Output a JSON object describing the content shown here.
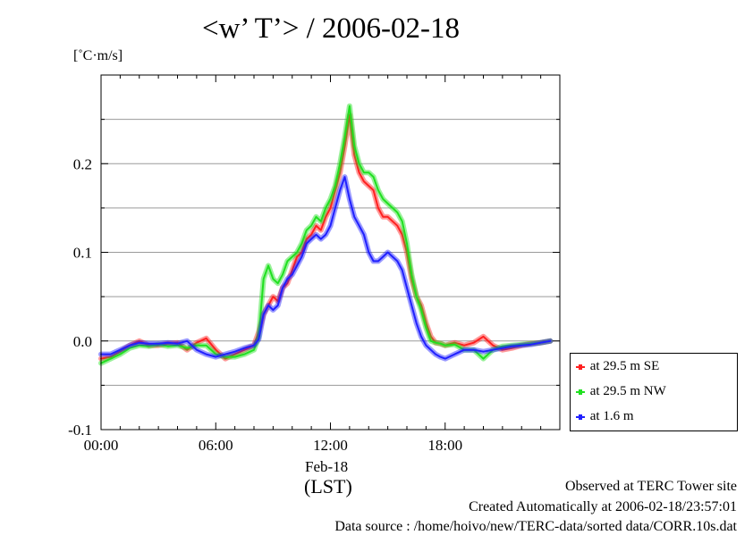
{
  "chart_data": {
    "type": "line",
    "title": "<w’ T’> / 2006-02-18",
    "ylabel": "[˚C·m/s]",
    "x_unit": "hours LST",
    "xlim": [
      0,
      24
    ],
    "ylim": [
      -0.1,
      0.3
    ],
    "x_ticks": [
      {
        "value": 0,
        "label": "00:00"
      },
      {
        "value": 6,
        "label": "06:00"
      },
      {
        "value": 12,
        "label": "12:00"
      },
      {
        "value": 18,
        "label": "18:00"
      }
    ],
    "y_ticks": [
      {
        "value": -0.1,
        "label": "-0.1"
      },
      {
        "value": 0.0,
        "label": "0.0"
      },
      {
        "value": 0.1,
        "label": "0.1"
      },
      {
        "value": 0.2,
        "label": "0.2"
      }
    ],
    "x_date_label": "Feb-18",
    "x_axis_label": "(LST)",
    "grid": "horizontal",
    "legend_position": "right",
    "series": [
      {
        "name": "at 29.5 m SE",
        "color": "#ff2020",
        "x": [
          0,
          0.5,
          1,
          1.5,
          2,
          2.5,
          3,
          3.5,
          4,
          4.5,
          5,
          5.5,
          6,
          6.5,
          7,
          7.5,
          8,
          8.25,
          8.5,
          8.75,
          9,
          9.25,
          9.5,
          9.75,
          10,
          10.25,
          10.5,
          10.75,
          11,
          11.25,
          11.5,
          11.75,
          12,
          12.25,
          12.5,
          12.75,
          13,
          13.25,
          13.5,
          13.75,
          14,
          14.25,
          14.5,
          14.75,
          15,
          15.25,
          15.5,
          15.75,
          16,
          16.25,
          16.5,
          16.75,
          17,
          17.25,
          17.5,
          17.75,
          18,
          18.5,
          19,
          19.5,
          20,
          20.5,
          21,
          21.5,
          22,
          22.5,
          23,
          23.5
        ],
        "y": [
          -0.02,
          -0.018,
          -0.012,
          -0.005,
          0.0,
          -0.005,
          -0.005,
          -0.003,
          -0.002,
          -0.01,
          -0.002,
          0.003,
          -0.01,
          -0.02,
          -0.015,
          -0.01,
          -0.005,
          0.01,
          0.03,
          0.04,
          0.05,
          0.045,
          0.06,
          0.065,
          0.08,
          0.095,
          0.1,
          0.115,
          0.12,
          0.13,
          0.125,
          0.14,
          0.15,
          0.17,
          0.19,
          0.22,
          0.255,
          0.21,
          0.19,
          0.18,
          0.175,
          0.17,
          0.15,
          0.14,
          0.14,
          0.135,
          0.13,
          0.12,
          0.1,
          0.07,
          0.05,
          0.04,
          0.02,
          0.005,
          -0.002,
          -0.003,
          -0.005,
          -0.002,
          -0.005,
          -0.002,
          0.005,
          -0.005,
          -0.01,
          -0.008,
          -0.005,
          -0.003,
          -0.002,
          0.0
        ]
      },
      {
        "name": "at 29.5 m NW",
        "color": "#20e020",
        "x": [
          0,
          0.5,
          1,
          1.5,
          2,
          2.5,
          3,
          3.5,
          4,
          4.5,
          5,
          5.5,
          6,
          6.5,
          7,
          7.5,
          8,
          8.25,
          8.5,
          8.75,
          9,
          9.25,
          9.5,
          9.75,
          10,
          10.25,
          10.5,
          10.75,
          11,
          11.25,
          11.5,
          11.75,
          12,
          12.25,
          12.5,
          12.75,
          13,
          13.25,
          13.5,
          13.75,
          14,
          14.25,
          14.5,
          14.75,
          15,
          15.25,
          15.5,
          15.75,
          16,
          16.25,
          16.5,
          16.75,
          17,
          17.25,
          17.5,
          17.75,
          18,
          18.5,
          19,
          19.5,
          20,
          20.5,
          21,
          21.5,
          22,
          22.5,
          23,
          23.5
        ],
        "y": [
          -0.025,
          -0.02,
          -0.015,
          -0.008,
          -0.005,
          -0.006,
          -0.004,
          -0.006,
          -0.005,
          -0.008,
          -0.005,
          -0.005,
          -0.015,
          -0.018,
          -0.018,
          -0.015,
          -0.01,
          0.005,
          0.07,
          0.085,
          0.07,
          0.065,
          0.075,
          0.09,
          0.095,
          0.1,
          0.11,
          0.125,
          0.13,
          0.14,
          0.135,
          0.15,
          0.16,
          0.175,
          0.2,
          0.23,
          0.265,
          0.22,
          0.2,
          0.19,
          0.19,
          0.185,
          0.17,
          0.16,
          0.155,
          0.15,
          0.145,
          0.135,
          0.11,
          0.075,
          0.05,
          0.035,
          0.015,
          0.0,
          -0.002,
          -0.003,
          -0.005,
          -0.004,
          -0.01,
          -0.01,
          -0.02,
          -0.01,
          -0.006,
          -0.005,
          -0.004,
          -0.003,
          -0.002,
          0.0
        ]
      },
      {
        "name": "at 1.6 m",
        "color": "#2020ff",
        "x": [
          0,
          0.5,
          1,
          1.5,
          2,
          2.5,
          3,
          3.5,
          4,
          4.5,
          5,
          5.5,
          6,
          6.5,
          7,
          7.5,
          8,
          8.25,
          8.5,
          8.75,
          9,
          9.25,
          9.5,
          9.75,
          10,
          10.25,
          10.5,
          10.75,
          11,
          11.25,
          11.5,
          11.75,
          12,
          12.25,
          12.5,
          12.75,
          13,
          13.25,
          13.5,
          13.75,
          14,
          14.25,
          14.5,
          14.75,
          15,
          15.25,
          15.5,
          15.75,
          16,
          16.25,
          16.5,
          16.75,
          17,
          17.25,
          17.5,
          17.75,
          18,
          18.5,
          19,
          19.5,
          20,
          20.5,
          21,
          21.5,
          22,
          22.5,
          23,
          23.5
        ],
        "y": [
          -0.015,
          -0.015,
          -0.01,
          -0.005,
          -0.002,
          -0.003,
          -0.003,
          -0.002,
          -0.003,
          0.0,
          -0.01,
          -0.015,
          -0.018,
          -0.015,
          -0.012,
          -0.008,
          -0.005,
          0.002,
          0.03,
          0.04,
          0.035,
          0.04,
          0.06,
          0.07,
          0.075,
          0.085,
          0.095,
          0.11,
          0.115,
          0.12,
          0.115,
          0.12,
          0.13,
          0.15,
          0.17,
          0.185,
          0.16,
          0.14,
          0.13,
          0.12,
          0.1,
          0.09,
          0.09,
          0.095,
          0.1,
          0.095,
          0.09,
          0.08,
          0.06,
          0.04,
          0.02,
          0.005,
          -0.005,
          -0.01,
          -0.015,
          -0.018,
          -0.02,
          -0.015,
          -0.01,
          -0.01,
          -0.012,
          -0.01,
          -0.008,
          -0.006,
          -0.005,
          -0.004,
          -0.002,
          0.0
        ]
      }
    ]
  },
  "footer": {
    "line1": "Observed at TERC Tower site",
    "line2": "Created Automatically at 2006-02-18/23:57:01",
    "line3": "Data source : /home/hoivo/new/TERC-data/sorted data/CORR.10s.dat"
  }
}
